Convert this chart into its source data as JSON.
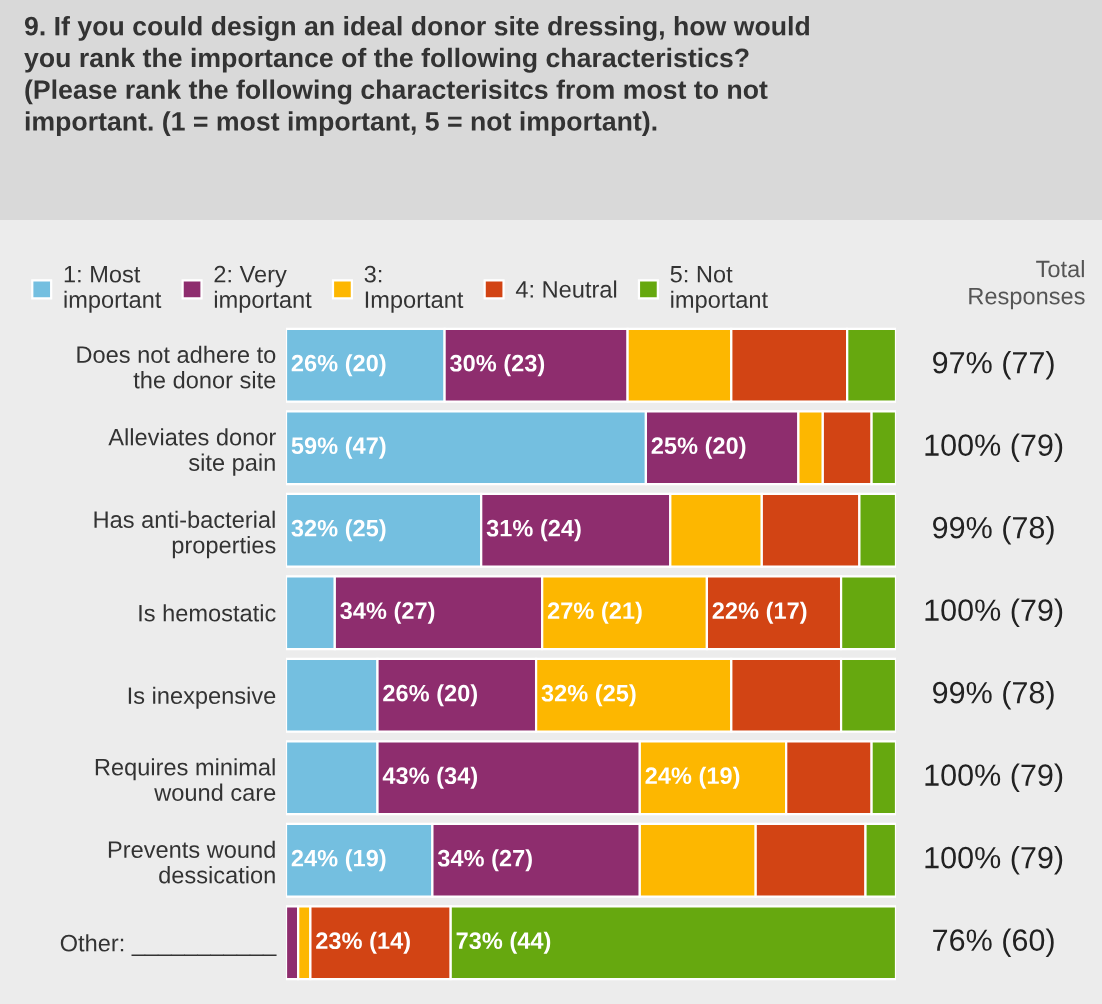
{
  "chart_data": {
    "type": "bar",
    "orientation": "horizontal",
    "stacked": true,
    "title": "9. If you could design an ideal donor site dressing, how would you rank the importance of the following characteristics? (Please rank the following characterisitcs from most to not important. (1 = most important, 5 = not important).",
    "categories": [
      "Does not adhere to the donor site",
      "Alleviates donor site pain",
      "Has anti-bacterial properties",
      "Is hemostatic",
      "Is inexpensive",
      "Requires minimal wound care",
      "Prevents wound dessication",
      "Other: ___________"
    ],
    "series": [
      {
        "name": "1: Most important",
        "color": "#74bfe0",
        "values": [
          26,
          59,
          32,
          8,
          15,
          15,
          24,
          0
        ],
        "value_labels": [
          "26% (20)",
          "59% (47)",
          "32% (25)",
          null,
          null,
          null,
          "24% (19)",
          null
        ]
      },
      {
        "name": "2: Very important",
        "color": "#8e2d6e",
        "values": [
          30,
          25,
          31,
          34,
          26,
          43,
          34,
          2
        ],
        "value_labels": [
          "30% (23)",
          "25% (20)",
          "31% (24)",
          "34% (27)",
          "26% (20)",
          "43% (34)",
          "34% (27)",
          null
        ]
      },
      {
        "name": "3: Important",
        "color": "#fdb700",
        "values": [
          17,
          4,
          15,
          27,
          32,
          24,
          19,
          2
        ],
        "value_labels": [
          null,
          null,
          null,
          "27% (21)",
          "32% (25)",
          "24% (19)",
          null,
          null
        ]
      },
      {
        "name": "4: Neutral",
        "color": "#d24414",
        "values": [
          19,
          8,
          16,
          22,
          18,
          14,
          18,
          23
        ],
        "value_labels": [
          null,
          null,
          null,
          "22% (17)",
          null,
          null,
          null,
          "23% (14)"
        ]
      },
      {
        "name": "5: Not important",
        "color": "#66a80f",
        "values": [
          8,
          4,
          6,
          9,
          9,
          4,
          5,
          73
        ],
        "value_labels": [
          null,
          null,
          null,
          null,
          null,
          null,
          null,
          "73% (44)"
        ]
      }
    ],
    "totals": [
      "97% (77)",
      "100% (79)",
      "99% (78)",
      "100% (79)",
      "99% (78)",
      "100% (79)",
      "100% (79)",
      "76% (60)"
    ],
    "annotations": [
      "Total Responses"
    ],
    "xlim": [
      0,
      100
    ],
    "tick_labels": "y",
    "legend": "top",
    "grid": false
  }
}
